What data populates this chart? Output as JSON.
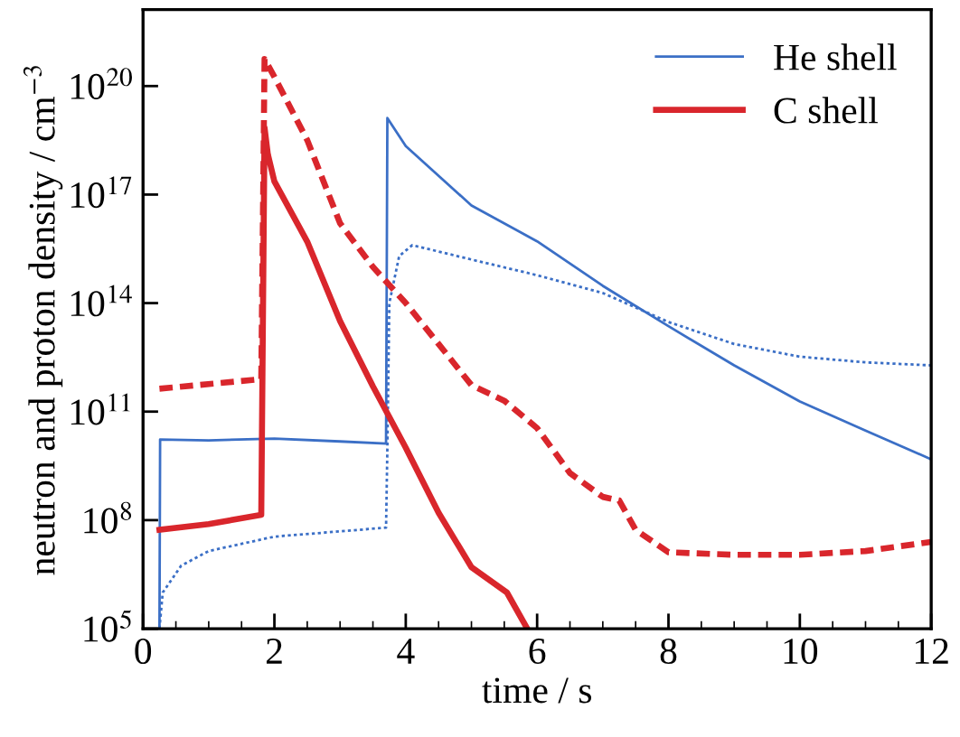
{
  "chart_data": {
    "type": "line",
    "xlabel": "time / s",
    "ylabel": "neutron and proton density / cm$^{−3}$",
    "log": "y",
    "xlim": [
      0,
      12
    ],
    "xticks": [
      0,
      2,
      4,
      6,
      8,
      10,
      12
    ],
    "ylim": [
      100000.0,
      1.3e+22
    ],
    "yticks": [
      {
        "value": 100000.0,
        "label": "10$^{5}$"
      },
      {
        "value": 100000000.0,
        "label": "10$^{8}$"
      },
      {
        "value": 100000000000.0,
        "label": "10$^{11}$"
      },
      {
        "value": 100000000000000.0,
        "label": "10$^{14}$"
      },
      {
        "value": 1e+17,
        "label": "10$^{17}$"
      },
      {
        "value": 1e+20,
        "label": "10$^{20}$"
      }
    ],
    "legend": "top right",
    "grid": false,
    "series": [
      {
        "name": "He shell",
        "color": "#3b6fc6",
        "line_style": "solid",
        "x": [
          0.25,
          0.26,
          1,
          2,
          3,
          3.7,
          3.72,
          4,
          5,
          6,
          7,
          8,
          9,
          10,
          11,
          12
        ],
        "values": [
          100000.0,
          17000000000.0,
          16000000000.0,
          18000000000.0,
          15000000000.0,
          13000000000.0,
          1.3e+19,
          2.2e+18,
          5e+16,
          5100000000000000.0,
          300000000000000.0,
          23000000000000.0,
          1900000000000.0,
          190000000000.0,
          30000000000.0,
          4800000000.0
        ]
      },
      {
        "color": "#3b6fc6",
        "line_style": "dotted",
        "x": [
          0.25,
          0.3,
          0.58,
          1,
          2,
          3,
          3.7,
          3.72,
          3.75,
          3.9,
          4.1,
          5,
          6,
          7,
          8,
          9,
          10,
          11,
          12
        ],
        "values": [
          100000.0,
          1000000.0,
          5500000.0,
          14000000.0,
          35000000.0,
          49000000.0,
          62000000.0,
          10000000000.0,
          100000000000000.0,
          2000000000000000.0,
          4000000000000000.0,
          1600000000000000.0,
          590000000000000.0,
          190000000000000.0,
          30000000000000.0,
          7400000000000.0,
          3300000000000.0,
          2300000000000.0,
          1900000000000.0
        ]
      },
      {
        "name": "C shell",
        "color": "#d9262c",
        "line_style": "solid",
        "x": [
          0.25,
          1,
          1.8,
          1.85,
          1.9,
          2,
          2.5,
          3,
          3.5,
          4,
          4.5,
          5,
          5.54,
          5.85
        ],
        "values": [
          54000000.0,
          78000000.0,
          140000000.0,
          7e+18,
          1.3e+18,
          2.3e+17,
          5000000000000000.0,
          32000000000000.0,
          500000000000.0,
          10000000000.0,
          160000000.0,
          5000000.0,
          1000000.0,
          100000.0
        ]
      },
      {
        "color": "#d9262c",
        "line_style": "dashed",
        "x": [
          0.25,
          1.8,
          1.85,
          2,
          2.5,
          3,
          3.5,
          4,
          4.5,
          5,
          5.5,
          6,
          6.5,
          7,
          7.25,
          7.5,
          8,
          9,
          10,
          11,
          12
        ],
        "values": [
          430000000000.0,
          790000000000.0,
          5.6e+20,
          1.8e+20,
          3.2e+18,
          1.6e+16,
          1000000000000000.0,
          100000000000000.0,
          7400000000000.0,
          540000000000.0,
          200000000000.0,
          35000000000.0,
          2000000000.0,
          440000000.0,
          350000000.0,
          54000000.0,
          13000000.0,
          11000000.0,
          11000000.0,
          14000000.0,
          25000000.0
        ]
      }
    ]
  }
}
